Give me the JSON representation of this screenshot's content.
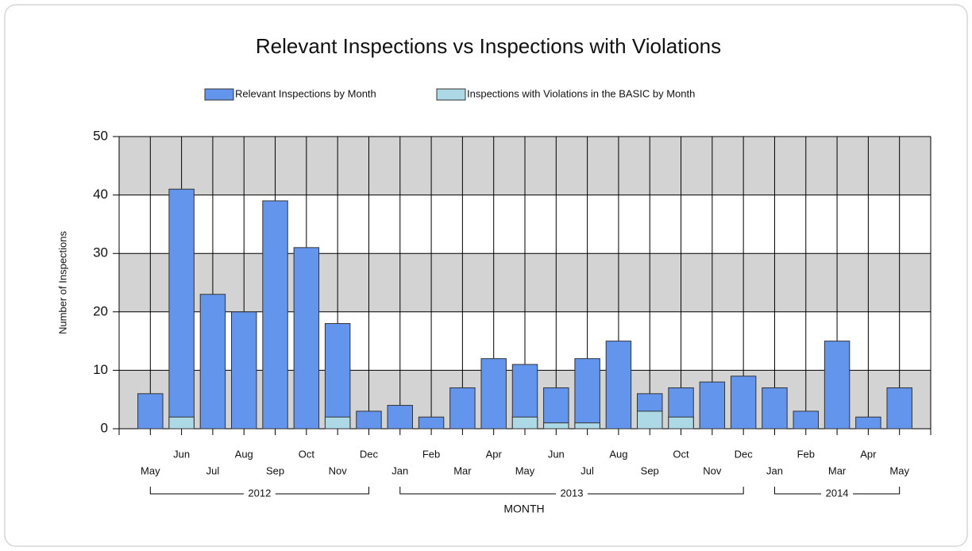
{
  "chart_data": {
    "type": "bar",
    "title": "Relevant Inspections vs Inspections with Violations",
    "y_label": "Number of Inspections",
    "x_label": "MONTH",
    "groups": [
      {
        "label": "2012",
        "categories": [
          "May",
          "Jun",
          "Jul",
          "Aug",
          "Sep",
          "Oct",
          "Nov",
          "Dec"
        ]
      },
      {
        "label": "2013",
        "categories": [
          "Jan",
          "Feb",
          "Mar",
          "Apr",
          "May",
          "Jun",
          "Jul",
          "Aug",
          "Sep",
          "Oct",
          "Nov",
          "Dec"
        ]
      },
      {
        "label": "2014",
        "categories": [
          "Jan",
          "Feb",
          "Mar",
          "Apr",
          "May"
        ]
      }
    ],
    "series": [
      {
        "name": "Relevant Inspections by Month",
        "color": "#6495ed",
        "values": [
          6,
          41,
          23,
          20,
          39,
          31,
          18,
          3,
          4,
          2,
          7,
          12,
          11,
          7,
          12,
          15,
          6,
          7,
          8,
          9,
          7,
          3,
          15,
          2,
          7
        ]
      },
      {
        "name": "Inspections with Violations in the BASIC by Month",
        "color": "#add8e6",
        "values": [
          0,
          2,
          0,
          0,
          0,
          0,
          2,
          0,
          0,
          0,
          0,
          0,
          2,
          1,
          1,
          0,
          3,
          2,
          0,
          0,
          0,
          0,
          0,
          0,
          0
        ]
      }
    ],
    "ylim": [
      0,
      50
    ],
    "yticks": [
      0,
      10,
      20,
      30,
      40,
      50
    ],
    "grid": true,
    "legend": "top"
  }
}
